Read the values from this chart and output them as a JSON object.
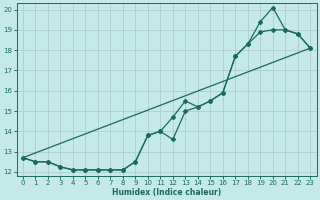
{
  "xlabel": "Humidex (Indice chaleur)",
  "xlim": [
    -0.5,
    23.5
  ],
  "ylim": [
    11.8,
    20.3
  ],
  "yticks": [
    12,
    13,
    14,
    15,
    16,
    17,
    18,
    19,
    20
  ],
  "xticks": [
    0,
    1,
    2,
    3,
    4,
    5,
    6,
    7,
    8,
    9,
    10,
    11,
    12,
    13,
    14,
    15,
    16,
    17,
    18,
    19,
    20,
    21,
    22,
    23
  ],
  "background_color": "#c5e8e8",
  "grid_color": "#b0cccc",
  "line_color": "#1a6b5a",
  "line1_x": [
    0,
    1,
    2,
    3,
    4,
    5,
    6,
    7,
    8,
    9,
    10,
    11,
    12,
    13,
    14,
    15,
    16,
    17,
    18,
    19,
    20,
    21,
    22,
    23
  ],
  "line1_y": [
    12.7,
    12.5,
    12.5,
    12.25,
    12.1,
    12.1,
    12.1,
    12.1,
    12.1,
    12.5,
    13.8,
    14.0,
    13.6,
    15.0,
    15.2,
    15.5,
    15.9,
    17.7,
    18.3,
    19.4,
    20.1,
    19.0,
    18.8,
    18.1
  ],
  "line2_x": [
    0,
    1,
    2,
    3,
    4,
    5,
    6,
    7,
    8,
    9,
    10,
    11,
    12,
    13,
    14,
    15,
    16,
    17,
    18,
    19,
    20,
    21,
    22,
    23
  ],
  "line2_y": [
    12.7,
    12.5,
    12.5,
    12.25,
    12.1,
    12.1,
    12.1,
    12.1,
    12.1,
    12.5,
    13.8,
    14.0,
    14.7,
    15.5,
    15.2,
    15.5,
    15.9,
    17.7,
    18.3,
    18.9,
    19.0,
    19.0,
    18.8,
    18.1
  ],
  "line3_x": [
    0,
    23
  ],
  "line3_y": [
    12.7,
    18.1
  ]
}
